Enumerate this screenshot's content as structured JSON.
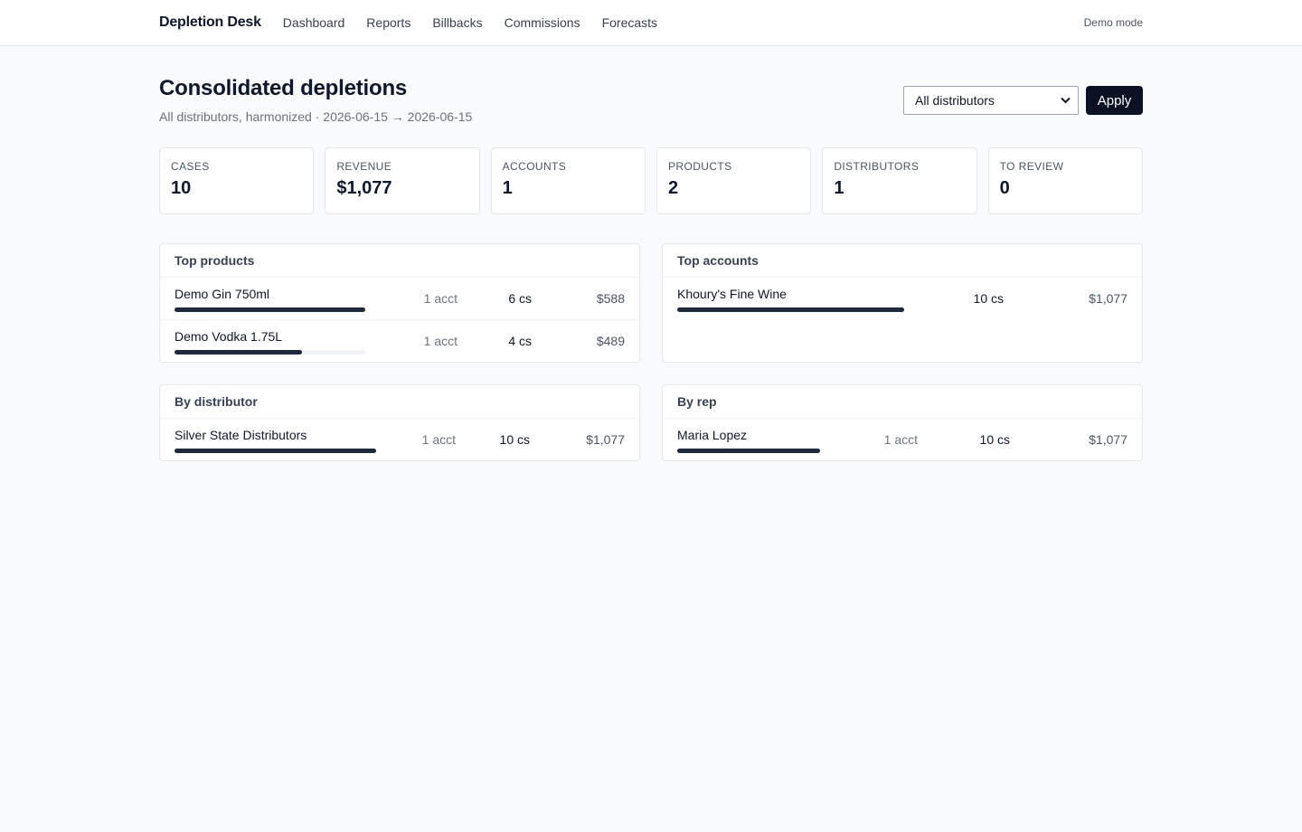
{
  "header": {
    "brand": "Depletion Desk",
    "nav": [
      "Dashboard",
      "Reports",
      "Billbacks",
      "Commissions",
      "Forecasts"
    ],
    "mode": "Demo mode"
  },
  "page": {
    "title": "Consolidated depletions",
    "subtitle": "All distributors, harmonized · 2026-06-15 → 2026-06-15",
    "filter_value": "All distributors",
    "apply_label": "Apply"
  },
  "kpis": [
    {
      "label": "Cases",
      "value": "10"
    },
    {
      "label": "Revenue",
      "value": "$1,077"
    },
    {
      "label": "Accounts",
      "value": "1"
    },
    {
      "label": "Products",
      "value": "2"
    },
    {
      "label": "Distributors",
      "value": "1"
    },
    {
      "label": "To review",
      "value": "0"
    }
  ],
  "top_products": {
    "title": "Top products",
    "rows": [
      {
        "name": "Demo Gin 750ml",
        "accounts": "1 acct",
        "cases": "6 cs",
        "revenue": "$588",
        "share": 1.0
      },
      {
        "name": "Demo Vodka 1.75L",
        "accounts": "1 acct",
        "cases": "4 cs",
        "revenue": "$489",
        "share": 0.67
      }
    ]
  },
  "top_accounts": {
    "title": "Top accounts",
    "rows": [
      {
        "name": "Khoury's Fine Wine",
        "cases": "10 cs",
        "revenue": "$1,077",
        "share": 1.0
      }
    ]
  },
  "by_distributor": {
    "title": "By distributor",
    "rows": [
      {
        "name": "Silver State Distributors",
        "accounts": "1 acct",
        "cases": "10 cs",
        "revenue": "$1,077",
        "share": 1.0
      }
    ]
  },
  "by_rep": {
    "title": "By rep",
    "rows": [
      {
        "name": "Maria Lopez",
        "accounts": "1 acct",
        "cases": "10 cs",
        "revenue": "$1,077",
        "share": 1.0
      }
    ]
  }
}
